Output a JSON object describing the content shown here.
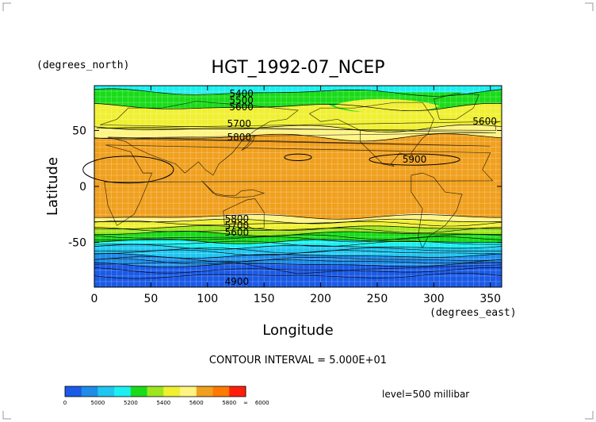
{
  "chart_data": {
    "type": "heatmap",
    "title": "HGT_1992-07_NCEP",
    "xlabel": "Longitude",
    "ylabel": "Latitude",
    "x_units": "(degrees_east)",
    "y_units": "(degrees_north)",
    "xlim": [
      0,
      360
    ],
    "ylim": [
      -90,
      90
    ],
    "x_ticks": [
      "0",
      "50",
      "100",
      "150",
      "200",
      "250",
      "300",
      "350"
    ],
    "y_ticks": [
      "50",
      "0",
      "-50"
    ],
    "x_tick_values": [
      0,
      50,
      100,
      150,
      200,
      250,
      300,
      350
    ],
    "y_tick_values": [
      50,
      0,
      -50
    ],
    "contour_interval_text": "CONTOUR INTERVAL = 5.000E+01",
    "level_text": "level=500 millibar",
    "contour_labels": [
      {
        "text": "5400",
        "lon": 130,
        "lat": 83
      },
      {
        "text": "5500",
        "lon": 130,
        "lat": 77
      },
      {
        "text": "5600",
        "lon": 130,
        "lat": 71
      },
      {
        "text": "5700",
        "lon": 128,
        "lat": 56
      },
      {
        "text": "5800",
        "lon": 128,
        "lat": 44
      },
      {
        "text": "5600",
        "lon": 345,
        "lat": 58
      },
      {
        "text": "5900",
        "lon": 283,
        "lat": 24
      },
      {
        "text": "5800",
        "lon": 126,
        "lat": -29
      },
      {
        "text": "5700",
        "lon": 126,
        "lat": -35
      },
      {
        "text": "5600",
        "lon": 126,
        "lat": -41
      },
      {
        "text": "4900",
        "lon": 126,
        "lat": -85
      }
    ],
    "colorbar": {
      "labels": [
        "0",
        "5000",
        "5200",
        "5400",
        "5600",
        "5800",
        "6000",
        "∞"
      ],
      "colors": [
        "#1a5ae6",
        "#1e8ce8",
        "#1ec6f0",
        "#1bf0f0",
        "#19dc19",
        "#9de61e",
        "#f0f032",
        "#fff482",
        "#f0a01e",
        "#ff7a00",
        "#ff1e0a"
      ]
    },
    "bands": [
      {
        "lat_top": 90,
        "lat_bottom": 84,
        "color": "#1bf0f0"
      },
      {
        "lat_top": 84,
        "lat_bottom": 71,
        "color": "#19dc19"
      },
      {
        "lat_top": 71,
        "lat_bottom": 52,
        "color": "#f0f032"
      },
      {
        "lat_top": 52,
        "lat_bottom": 44,
        "color": "#fff482"
      },
      {
        "lat_top": 44,
        "lat_bottom": -27,
        "color": "#f0a01e"
      },
      {
        "lat_top": -27,
        "lat_bottom": -31,
        "color": "#fff482"
      },
      {
        "lat_top": -31,
        "lat_bottom": -37,
        "color": "#f0f032"
      },
      {
        "lat_top": -37,
        "lat_bottom": -42,
        "color": "#9de61e"
      },
      {
        "lat_top": -42,
        "lat_bottom": -49,
        "color": "#19dc19"
      },
      {
        "lat_top": -49,
        "lat_bottom": -54,
        "color": "#1bf0f0"
      },
      {
        "lat_top": -54,
        "lat_bottom": -62,
        "color": "#1ec6f0"
      },
      {
        "lat_top": -62,
        "lat_bottom": -70,
        "color": "#1e8ce8"
      },
      {
        "lat_top": -70,
        "lat_bottom": -90,
        "color": "#1a5ae6"
      }
    ]
  }
}
